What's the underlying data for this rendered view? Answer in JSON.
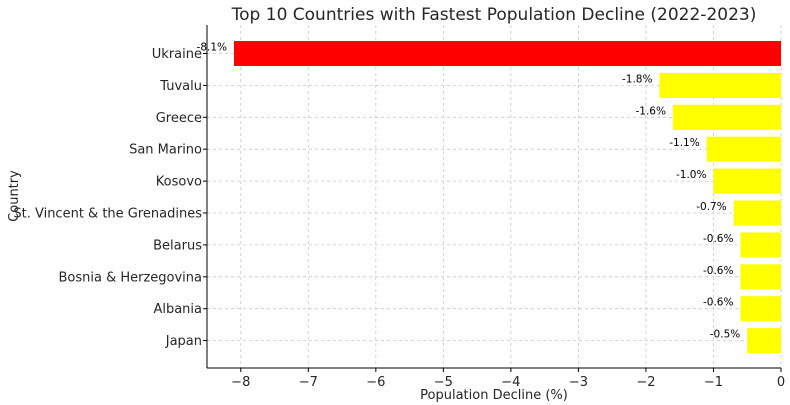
{
  "chart_data": {
    "type": "bar",
    "orientation": "horizontal",
    "title": "Top 10 Countries with Fastest Population Decline (2022-2023)",
    "xlabel": "Population Decline (%)",
    "ylabel": "Country",
    "xlim": [
      -8.5,
      0
    ],
    "xticks": [
      -8,
      -7,
      -6,
      -5,
      -4,
      -3,
      -2,
      -1,
      0
    ],
    "xtick_labels": [
      "−8",
      "−7",
      "−6",
      "−5",
      "−4",
      "−3",
      "−2",
      "−1",
      "0"
    ],
    "grid": true,
    "categories": [
      "Ukraine",
      "Tuvalu",
      "Greece",
      "San Marino",
      "Kosovo",
      "St. Vincent & the Grenadines",
      "Belarus",
      "Bosnia & Herzegovina",
      "Albania",
      "Japan"
    ],
    "values": [
      -8.1,
      -1.8,
      -1.6,
      -1.1,
      -1.0,
      -0.7,
      -0.6,
      -0.6,
      -0.6,
      -0.5
    ],
    "labels": [
      "-8.1%",
      "-1.8%",
      "-1.6%",
      "-1.1%",
      "-1.0%",
      "-0.7%",
      "-0.6%",
      "-0.6%",
      "-0.6%",
      "-0.5%"
    ],
    "colors": [
      "#ff0000",
      "#ffff00",
      "#ffff00",
      "#ffff00",
      "#ffff00",
      "#ffff00",
      "#ffff00",
      "#ffff00",
      "#ffff00",
      "#ffff00"
    ]
  }
}
